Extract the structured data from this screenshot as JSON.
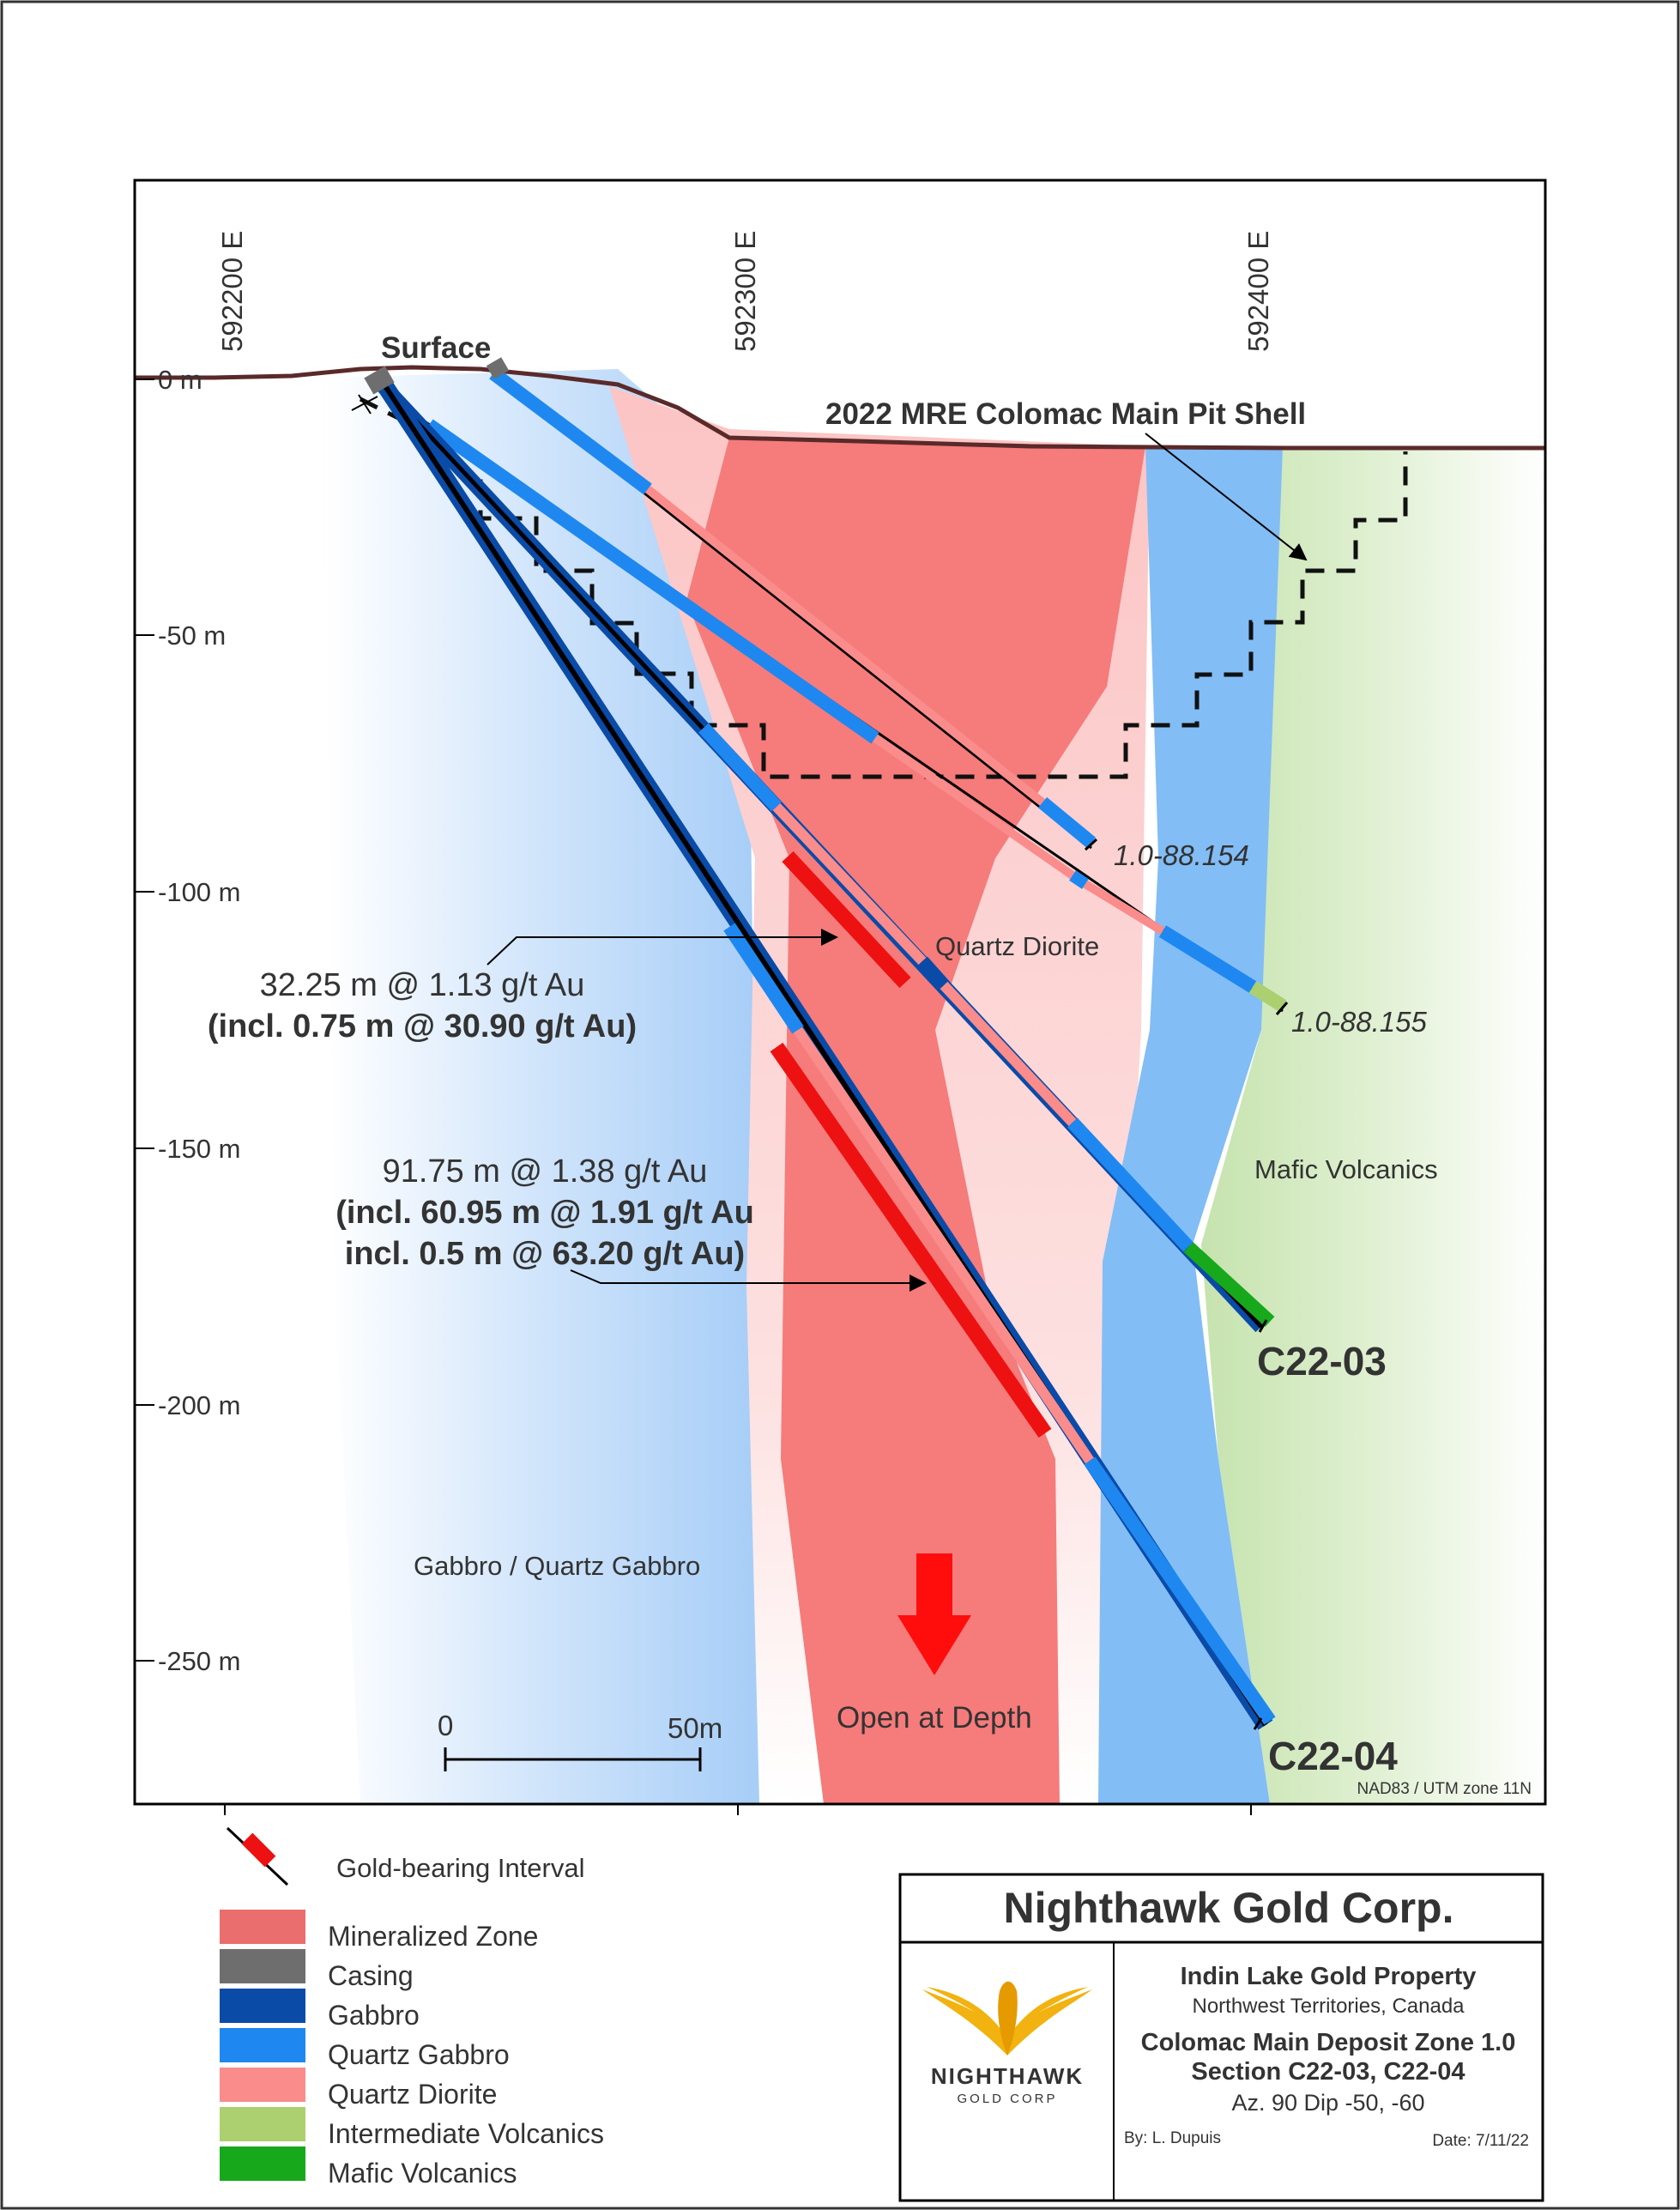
{
  "section": {
    "easting_labels": [
      "592200 E",
      "592300 E",
      "592400 E"
    ],
    "depth_labels": [
      "0 m",
      "-50 m",
      "-100 m",
      "-150 m",
      "-200 m",
      "-250 m"
    ],
    "projection": "NAD83 / UTM zone 11N"
  },
  "labels": {
    "surface": "Surface",
    "pit_shell": "2022 MRE Colomac Main Pit Shell",
    "quartz_diorite": "Quartz Diorite",
    "mafic_volcanics": "Mafic Volcanics",
    "gabbro_quartz_gabbro": "Gabbro / Quartz Gabbro",
    "open_at_depth": "Open at Depth"
  },
  "holes": {
    "h1": "1.0-88.154",
    "h2": "1.0-88.155",
    "c2203": "C22-03",
    "c2204": "C22-04"
  },
  "intercepts": {
    "upper_line1": "32.25 m @ 1.13 g/t Au",
    "upper_line2": "(incl. 0.75 m @ 30.90 g/t Au)",
    "lower_line1": "91.75 m @ 1.38 g/t Au",
    "lower_line2": "(incl. 60.95 m @ 1.91 g/t Au",
    "lower_line3": "incl. 0.5 m @ 63.20 g/t Au)"
  },
  "scale_bar": {
    "zero": "0",
    "end": "50m"
  },
  "legend": {
    "gold_bearing": "Gold-bearing Interval",
    "items": [
      {
        "label": "Mineralized Zone",
        "color": "#ea6e6e"
      },
      {
        "label": "Casing",
        "color": "#6e6e6e"
      },
      {
        "label": "Gabbro",
        "color": "#0a4ba8"
      },
      {
        "label": "Quartz Gabbro",
        "color": "#1e88f0"
      },
      {
        "label": "Quartz Diorite",
        "color": "#fa8c8c"
      },
      {
        "label": "Intermediate Volcanics",
        "color": "#acd070"
      },
      {
        "label": "Mafic Volcanics",
        "color": "#17a81c"
      }
    ]
  },
  "title_block": {
    "company": "Nighthawk Gold Corp.",
    "logo_name": "NIGHTHAWK",
    "logo_sub": "GOLD CORP",
    "property": "Indin Lake Gold Property",
    "location": "Northwest Territories, Canada",
    "deposit": "Colomac Main Deposit Zone 1.0",
    "section": "Section C22-03, C22-04",
    "orientation": "Az. 90 Dip -50, -60",
    "by": "By: L. Dupuis",
    "date": "Date: 7/11/22"
  }
}
